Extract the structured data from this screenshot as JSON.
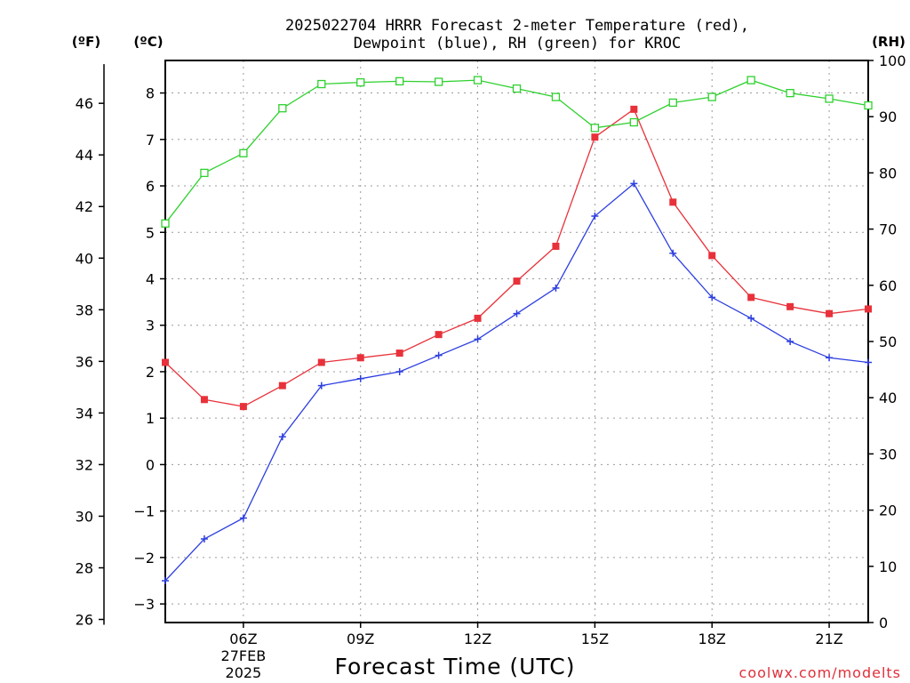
{
  "chart_data": {
    "type": "line",
    "title_lines": [
      "2025022704 HRRR Forecast 2-meter Temperature (red),",
      "Dewpoint (blue), RH (green) for KROC"
    ],
    "xlabel": "Forecast Time (UTC)",
    "credit": "coolwx.com/modelts",
    "x_hours": [
      4,
      5,
      6,
      7,
      8,
      9,
      10,
      11,
      12,
      13,
      14,
      15,
      16,
      17,
      18,
      19,
      20,
      21,
      22
    ],
    "x_ticks": [
      {
        "hour": 6,
        "lines": [
          "06Z",
          "27FEB",
          "2025"
        ]
      },
      {
        "hour": 9,
        "lines": [
          "09Z"
        ]
      },
      {
        "hour": 12,
        "lines": [
          "12Z"
        ]
      },
      {
        "hour": 15,
        "lines": [
          "15Z"
        ]
      },
      {
        "hour": 18,
        "lines": [
          "18Z"
        ]
      },
      {
        "hour": 21,
        "lines": [
          "21Z"
        ]
      }
    ],
    "xlim": [
      4,
      22
    ],
    "axes": {
      "celsius": {
        "unit_label": "(ºC)",
        "ticks": [
          -3,
          -2,
          -1,
          0,
          1,
          2,
          3,
          4,
          5,
          6,
          7,
          8
        ],
        "ylim": [
          -3.4,
          8.7
        ]
      },
      "fahrenheit": {
        "unit_label": "(ºF)",
        "ticks": [
          26,
          28,
          30,
          32,
          34,
          36,
          38,
          40,
          42,
          44,
          46
        ]
      },
      "rh": {
        "unit_label": "(RH)",
        "ticks": [
          0,
          10,
          20,
          30,
          40,
          50,
          60,
          70,
          80,
          90,
          100
        ],
        "ylim": [
          0,
          100
        ]
      }
    },
    "grid": true,
    "series": [
      {
        "name": "Temperature",
        "axis": "celsius",
        "color": "#e8313a",
        "marker": "filled-square",
        "values": [
          2.2,
          1.4,
          1.25,
          1.7,
          2.2,
          2.3,
          2.4,
          2.8,
          3.15,
          3.95,
          4.7,
          7.05,
          7.65,
          5.65,
          4.5,
          3.6,
          3.4,
          3.25,
          3.35
        ]
      },
      {
        "name": "Dewpoint",
        "axis": "celsius",
        "color": "#2e3fe0",
        "marker": "plus",
        "values": [
          -2.5,
          -1.6,
          -1.15,
          0.6,
          1.7,
          1.85,
          2.0,
          2.35,
          2.7,
          3.25,
          3.8,
          5.35,
          6.05,
          4.55,
          3.6,
          3.15,
          2.65,
          2.3,
          2.2
        ]
      },
      {
        "name": "RH",
        "axis": "rh",
        "color": "#2ed12e",
        "marker": "hollow-square",
        "values": [
          71,
          80,
          83.5,
          91.5,
          95.8,
          96.1,
          96.3,
          96.2,
          96.5,
          95,
          93.5,
          88,
          89,
          92.5,
          93.5,
          96.5,
          94.2,
          93.2,
          92
        ]
      }
    ]
  }
}
